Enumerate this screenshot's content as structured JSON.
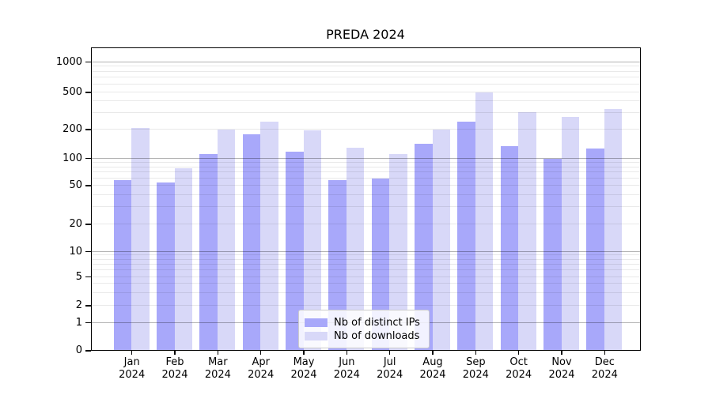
{
  "title": "PREDA 2024",
  "chart_data": {
    "type": "bar",
    "title": "PREDA 2024",
    "categories": [
      "Jan 2024",
      "Feb 2024",
      "Mar 2024",
      "Apr 2024",
      "May 2024",
      "Jun 2024",
      "Jul 2024",
      "Aug 2024",
      "Sep 2024",
      "Oct 2024",
      "Nov 2024",
      "Dec 2024"
    ],
    "series": [
      {
        "name": "Nb of distinct IPs",
        "color": "#a8a8fa",
        "values": [
          57,
          54,
          112,
          178,
          118,
          58,
          60,
          143,
          242,
          134,
          100,
          128
        ]
      },
      {
        "name": "Nb of downloads",
        "color": "#d8d8f8",
        "values": [
          210,
          78,
          200,
          243,
          197,
          130,
          112,
          201,
          500,
          309,
          275,
          334
        ]
      }
    ],
    "y_ticks": [
      0,
      1,
      2,
      5,
      10,
      20,
      50,
      100,
      200,
      500,
      1000
    ],
    "y_scale": "symlog",
    "ylim": [
      0,
      1400
    ],
    "xlabel": "",
    "ylabel": "",
    "grid": "horizontal major+minor",
    "legend_position": "lower center"
  },
  "colors": {
    "bar_distinct_ips": "#a8a8fa",
    "bar_downloads": "#d8d8f8",
    "grid_major": "#b3b3b3",
    "grid_minor": "#e9e9e9",
    "spine": "#000000",
    "background": "#ffffff"
  }
}
